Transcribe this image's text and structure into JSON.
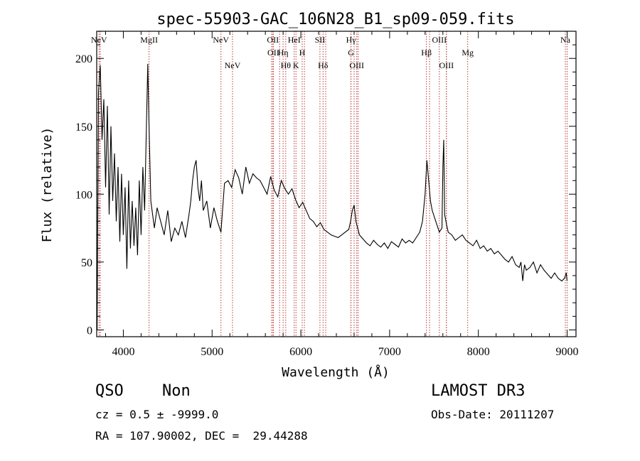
{
  "chart_data": {
    "type": "line",
    "title": "spec-55903-GAC_106N28_B1_sp09-059.fits",
    "xlabel": "Wavelength (Å)",
    "ylabel": "Flux (relative)",
    "xlim": [
      3700,
      9100
    ],
    "ylim": [
      -5,
      220
    ],
    "x_ticks": [
      4000,
      5000,
      6000,
      7000,
      8000,
      9000
    ],
    "y_ticks": [
      0,
      50,
      100,
      150,
      200
    ],
    "grid": false,
    "line_color": "#000000",
    "marker_color": "#b22222",
    "series": [
      {
        "x": [
          3705,
          3720,
          3740,
          3760,
          3780,
          3800,
          3820,
          3840,
          3860,
          3880,
          3900,
          3920,
          3940,
          3960,
          3980,
          4000,
          4020,
          4040,
          4060,
          4080,
          4100,
          4120,
          4140,
          4160,
          4180,
          4200,
          4220,
          4240,
          4260,
          4275,
          4290,
          4310,
          4330,
          4350,
          4380,
          4420,
          4460,
          4500,
          4540,
          4580,
          4620,
          4660,
          4700,
          4740,
          4760,
          4780,
          4800,
          4820,
          4840,
          4860,
          4880,
          4900,
          4940,
          4980,
          5020,
          5060,
          5100,
          5140,
          5180,
          5220,
          5260,
          5300,
          5340,
          5380,
          5420,
          5460,
          5500,
          5540,
          5580,
          5620,
          5660,
          5700,
          5740,
          5780,
          5820,
          5860,
          5900,
          5940,
          5980,
          6020,
          6060,
          6100,
          6140,
          6180,
          6220,
          6260,
          6300,
          6340,
          6380,
          6420,
          6460,
          6500,
          6540,
          6560,
          6580,
          6600,
          6620,
          6660,
          6700,
          6740,
          6780,
          6820,
          6860,
          6900,
          6940,
          6980,
          7020,
          7060,
          7100,
          7140,
          7180,
          7220,
          7260,
          7300,
          7340,
          7370,
          7400,
          7420,
          7440,
          7460,
          7480,
          7520,
          7560,
          7590,
          7600,
          7610,
          7620,
          7640,
          7660,
          7700,
          7740,
          7780,
          7820,
          7860,
          7900,
          7940,
          7980,
          8020,
          8060,
          8100,
          8140,
          8180,
          8220,
          8260,
          8300,
          8340,
          8380,
          8420,
          8460,
          8480,
          8500,
          8520,
          8540,
          8580,
          8620,
          8660,
          8700,
          8740,
          8780,
          8820,
          8860,
          8900,
          8940,
          8970,
          8990,
          9000
        ],
        "y": [
          0,
          175,
          195,
          140,
          170,
          105,
          165,
          85,
          150,
          95,
          130,
          80,
          120,
          65,
          115,
          70,
          105,
          45,
          110,
          60,
          95,
          62,
          90,
          55,
          110,
          70,
          120,
          88,
          150,
          196,
          150,
          95,
          85,
          75,
          90,
          80,
          70,
          88,
          65,
          75,
          70,
          80,
          68,
          85,
          95,
          110,
          120,
          125,
          105,
          95,
          110,
          88,
          95,
          75,
          90,
          80,
          72,
          108,
          110,
          105,
          118,
          112,
          100,
          120,
          108,
          115,
          112,
          110,
          105,
          100,
          113,
          103,
          98,
          110,
          104,
          100,
          104,
          96,
          90,
          94,
          88,
          82,
          80,
          76,
          79,
          74,
          72,
          70,
          69,
          68,
          70,
          72,
          74,
          80,
          88,
          92,
          80,
          70,
          67,
          64,
          62,
          66,
          63,
          61,
          64,
          60,
          65,
          63,
          61,
          67,
          64,
          66,
          64,
          68,
          72,
          80,
          100,
          125,
          110,
          95,
          88,
          80,
          72,
          75,
          120,
          140,
          85,
          78,
          72,
          70,
          66,
          68,
          70,
          66,
          64,
          62,
          66,
          60,
          62,
          58,
          60,
          56,
          58,
          55,
          52,
          50,
          54,
          48,
          46,
          50,
          36,
          48,
          44,
          46,
          50,
          42,
          48,
          44,
          41,
          38,
          42,
          38,
          36,
          38,
          42,
          36
        ]
      }
    ],
    "lines_upper": [
      {
        "wl": 3726,
        "label": "NeV"
      },
      {
        "wl": 4290,
        "label": "MgII"
      },
      {
        "wl": 5100,
        "label": "NeV"
      },
      {
        "wl": 5685,
        "label": "OII"
      },
      {
        "wl": 5690,
        "label": "OII"
      },
      {
        "wl": 5800,
        "label": "Hη"
      },
      {
        "wl": 5925,
        "label": "HeI"
      },
      {
        "wl": 6015,
        "label": "H"
      },
      {
        "wl": 6215,
        "label": "SII"
      },
      {
        "wl": 6565,
        "label": "Hγ"
      },
      {
        "wl": 6565,
        "label": "G"
      },
      {
        "wl": 7415,
        "label": "Hβ"
      },
      {
        "wl": 7560,
        "label": "OIII"
      },
      {
        "wl": 7880,
        "label": "Mg"
      },
      {
        "wl": 8980,
        "label": "Na"
      }
    ],
    "lines_lower": [
      {
        "wl": 5230,
        "label": "NeV"
      },
      {
        "wl": 5830,
        "label": "Hθ"
      },
      {
        "wl": 5945,
        "label": "K"
      },
      {
        "wl": 6250,
        "label": "Hδ"
      },
      {
        "wl": 6630,
        "label": "OIII"
      },
      {
        "wl": 7640,
        "label": "OIII"
      }
    ],
    "extra_line_wl": [
      3740,
      5670,
      5760,
      6040,
      6280,
      6600,
      6645,
      7450,
      7640,
      9000
    ]
  },
  "info": {
    "class": "QSO",
    "subclass": "Non",
    "cz": "cz = 0.5 ± -9999.0",
    "radec": "RA = 107.90002, DEC =  29.44288",
    "survey": "LAMOST DR3",
    "obsdate": "Obs-Date: 20111207"
  }
}
